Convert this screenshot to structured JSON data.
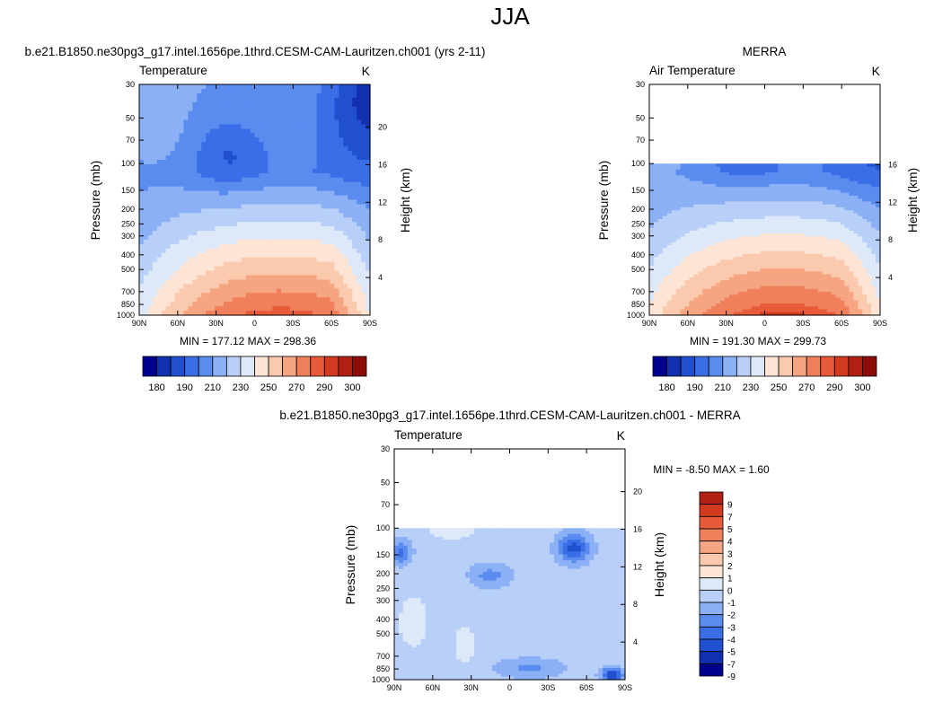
{
  "figure_title": "JJA",
  "colors": {
    "temperature_scale": [
      "#00008c",
      "#1030b0",
      "#2050d0",
      "#3a6ee6",
      "#5a8cf0",
      "#8cb0f6",
      "#b8cff8",
      "#dde9f8",
      "#fde4d4",
      "#fbc9ae",
      "#f6a583",
      "#f0805c",
      "#e85b3a",
      "#d23a1f",
      "#b02012",
      "#8c0c08"
    ],
    "difference_scale": [
      "#00008c",
      "#1030b0",
      "#2050d0",
      "#3a6ee6",
      "#5a8cf0",
      "#8cb0f6",
      "#b8cff8",
      "#dde9f8",
      "#fde4d4",
      "#fbc9ae",
      "#f6a583",
      "#f0805c",
      "#e85b3a",
      "#d23a1f",
      "#b02012"
    ]
  },
  "chart_data": [
    {
      "type": "heatmap",
      "id": "model",
      "title": "b.e21.B1850.ne30pg3_g17.intel.1656pe.1thrd.CESM-CAM-Lauritzen.ch001 (yrs 2-11)",
      "left_label": "Temperature",
      "right_label": "K",
      "xlabel": "",
      "ylabel": "Pressure (mb)",
      "y2label": "Height (km)",
      "x_ticks": [
        "90N",
        "60N",
        "30N",
        "0",
        "30S",
        "60S",
        "90S"
      ],
      "y_ticks": [
        30,
        50,
        70,
        100,
        150,
        200,
        250,
        300,
        400,
        500,
        700,
        850,
        1000
      ],
      "y_range": [
        30,
        1000
      ],
      "y2_ticks": [
        4,
        8,
        12,
        16,
        20
      ],
      "data_p_range": [
        30,
        1000
      ],
      "min_max_text": "MIN = 177.12   MAX = 298.36",
      "colorbar_labels": [
        "180",
        "190",
        "210",
        "230",
        "250",
        "270",
        "290",
        "300"
      ],
      "field_key": "model"
    },
    {
      "type": "heatmap",
      "id": "merra",
      "title": "MERRA",
      "left_label": "Air Temperature",
      "right_label": "K",
      "xlabel": "",
      "ylabel": "Pressure (mb)",
      "y2label": "Height (km)",
      "x_ticks": [
        "90N",
        "60N",
        "30N",
        "0",
        "30S",
        "60S",
        "90S"
      ],
      "y_ticks": [
        30,
        50,
        70,
        100,
        150,
        200,
        250,
        300,
        400,
        500,
        700,
        850,
        1000
      ],
      "y_range": [
        30,
        1000
      ],
      "y2_ticks": [
        4,
        8,
        12,
        16
      ],
      "data_p_range": [
        100,
        1000
      ],
      "min_max_text": "MIN = 191.30   MAX = 299.73",
      "colorbar_labels": [
        "180",
        "190",
        "210",
        "230",
        "250",
        "270",
        "290",
        "300"
      ],
      "field_key": "merra"
    },
    {
      "type": "heatmap",
      "id": "diff",
      "title": "b.e21.B1850.ne30pg3_g17.intel.1656pe.1thrd.CESM-CAM-Lauritzen.ch001 - MERRA",
      "left_label": "Temperature",
      "right_label": "K",
      "xlabel": "",
      "ylabel": "Pressure (mb)",
      "y2label": "Height (km)",
      "x_ticks": [
        "90N",
        "60N",
        "30N",
        "0",
        "30S",
        "60S",
        "90S"
      ],
      "y_ticks": [
        30,
        50,
        70,
        100,
        150,
        200,
        250,
        300,
        400,
        500,
        700,
        850,
        1000
      ],
      "y_range": [
        30,
        1000
      ],
      "y2_ticks": [
        4,
        8,
        12,
        16,
        20
      ],
      "data_p_range": [
        100,
        1000
      ],
      "min_max_text": "MIN =  -8.50   MAX =   1.60",
      "colorbar_labels": [
        "9",
        "7",
        "5",
        "4",
        "3",
        "2",
        "1",
        "0",
        "-1",
        "-2",
        "-3",
        "-4",
        "-5",
        "-7",
        "-9"
      ],
      "field_key": "diff"
    }
  ]
}
